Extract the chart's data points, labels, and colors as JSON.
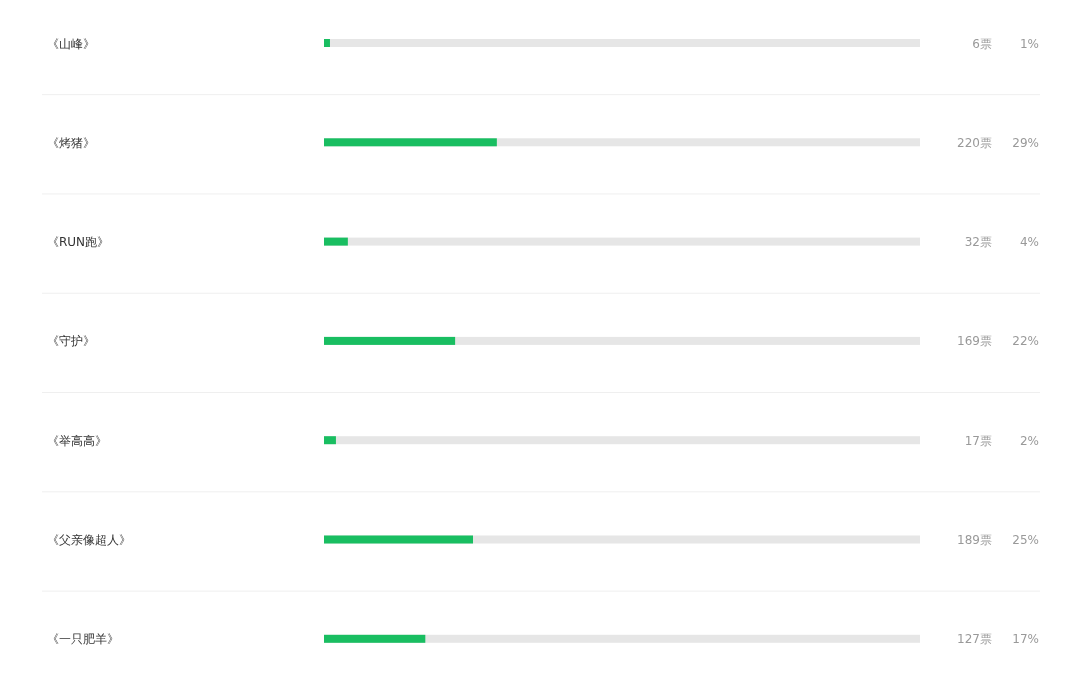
{
  "chart_data": {
    "type": "bar",
    "orientation": "horizontal",
    "categories": [
      "《山峰》",
      "《烤猪》",
      "《RUN跑》",
      "《守护》",
      "《举高高》",
      "《父亲像超人》",
      "《一只肥羊》"
    ],
    "values": [
      1,
      29,
      4,
      22,
      2,
      25,
      17
    ],
    "color": "#19be61",
    "xlim": [
      0,
      100
    ],
    "tick_labels": "y",
    "value_labels": [
      "1%",
      "29%",
      "4%",
      "22%",
      "2%",
      "25%",
      "17%"
    ],
    "annotations": [
      "6票",
      "220票",
      "32票",
      "169票",
      "17票",
      "189票",
      "127票"
    ]
  }
}
